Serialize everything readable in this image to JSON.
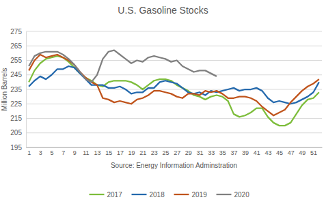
{
  "chart_data": {
    "type": "line",
    "title": "U.S. Gasoline Stocks",
    "x_label": "Source: Energy Information Adminstration",
    "y_label": "Million Barrels",
    "x": [
      1,
      2,
      3,
      4,
      5,
      6,
      7,
      8,
      9,
      10,
      11,
      12,
      13,
      14,
      15,
      16,
      17,
      18,
      19,
      20,
      21,
      22,
      23,
      24,
      25,
      26,
      27,
      28,
      29,
      30,
      31,
      32,
      33,
      34,
      35,
      36,
      37,
      38,
      39,
      40,
      41,
      42,
      43,
      44,
      45,
      46,
      47,
      48,
      49,
      50,
      51,
      52
    ],
    "xlim": [
      0.5,
      52.5
    ],
    "xticks": [
      1,
      3,
      5,
      7,
      9,
      11,
      13,
      15,
      17,
      19,
      21,
      23,
      25,
      27,
      29,
      31,
      33,
      35,
      37,
      39,
      41,
      43,
      45,
      47,
      49,
      51
    ],
    "ylim": [
      195,
      275
    ],
    "yticks": [
      195,
      205,
      215,
      225,
      235,
      245,
      255,
      265,
      275
    ],
    "grid": true,
    "legend": "bottom",
    "series": [
      {
        "name": "2017",
        "color": "#7dbd3b",
        "values": [
          240,
          248,
          253,
          256,
          257,
          258,
          257,
          254,
          250,
          246,
          243,
          241,
          238,
          237,
          240,
          241,
          241,
          241,
          240,
          238,
          235,
          238,
          241,
          242,
          242,
          241,
          238,
          236,
          234,
          231,
          230,
          228,
          230,
          231,
          230,
          227,
          218,
          216,
          217,
          219,
          222,
          222,
          216,
          212,
          210,
          210,
          212,
          218,
          224,
          228,
          229,
          233
        ]
      },
      {
        "name": "2018",
        "color": "#2469ad",
        "values": [
          237,
          241,
          244,
          242,
          245,
          249,
          249,
          251,
          250,
          246,
          242,
          238,
          238,
          238,
          236,
          236,
          237,
          235,
          232,
          233,
          233,
          236,
          236,
          240,
          241,
          240,
          239,
          236,
          233,
          232,
          233,
          231,
          234,
          233,
          234,
          235,
          236,
          234,
          235,
          235,
          236,
          234,
          229,
          226,
          227,
          226,
          225,
          226,
          228,
          230,
          233,
          240
        ]
      },
      {
        "name": "2019",
        "color": "#c0541c",
        "values": [
          248,
          255,
          259,
          257,
          258,
          259,
          257,
          255,
          252,
          247,
          243,
          240,
          238,
          229,
          228,
          226,
          227,
          226,
          225,
          228,
          229,
          231,
          234,
          234,
          233,
          232,
          230,
          229,
          232,
          232,
          231,
          234,
          233,
          234,
          232,
          229,
          229,
          230,
          230,
          229,
          227,
          223,
          220,
          217,
          219,
          221,
          226,
          230,
          234,
          237,
          239,
          242
        ]
      },
      {
        "name": "2020",
        "color": "#808080",
        "values": [
          251,
          258,
          260,
          261,
          261,
          261,
          259,
          256,
          252,
          247,
          242,
          240,
          245,
          256,
          261,
          262,
          259,
          256,
          253,
          255,
          254,
          257,
          258,
          257,
          256,
          254,
          255,
          251,
          249,
          247,
          248,
          248,
          246,
          244,
          null,
          null,
          null,
          null,
          null,
          null,
          null,
          null,
          null,
          null,
          null,
          null,
          null,
          null,
          null,
          null,
          null,
          null
        ]
      }
    ]
  }
}
